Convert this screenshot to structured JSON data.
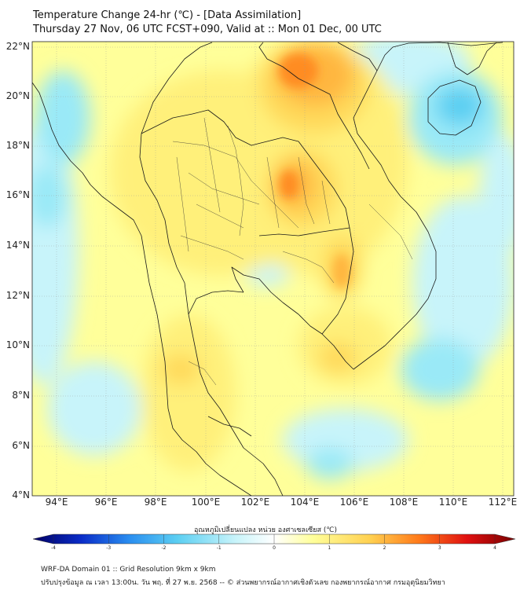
{
  "header": {
    "title_line1": "Temperature Change 24-hr (℃) - [Data Assimilation]",
    "title_line2": "Thursday 27 Nov, 06 UTC FCST+090, Valid at :: Mon 01 Dec, 00 UTC"
  },
  "map": {
    "lat_labels": [
      "22°N",
      "20°N",
      "18°N",
      "16°N",
      "14°N",
      "12°N",
      "10°N",
      "8°N",
      "6°N",
      "4°N"
    ],
    "lon_labels": [
      "94°E",
      "96°E",
      "98°E",
      "100°E",
      "102°E",
      "104°E",
      "106°E",
      "108°E",
      "110°E",
      "112°E"
    ],
    "warm_colors": [
      "#ffff9a",
      "#fff07a",
      "#ffd95a",
      "#ffb640",
      "#ff8c22",
      "#ff4a10"
    ],
    "cool_colors": [
      "#c8f4fa",
      "#9ae9f7",
      "#5ccff2",
      "#2aa8e8"
    ]
  },
  "colorbar": {
    "label": "อุณหภูมิเปลี่ยนแปลง หน่วย องศาเซลเซียส (℃)",
    "ticks": [
      "-4",
      "-3",
      "-2",
      "-1",
      "0",
      "1",
      "2",
      "3",
      "4"
    ],
    "stops": [
      "#000064",
      "#0a2cc8",
      "#2a8ef0",
      "#5ccff2",
      "#c8f4fa",
      "#ffffff",
      "#ffff9a",
      "#ffd050",
      "#ff7a1a",
      "#e01010",
      "#780000"
    ]
  },
  "footer": {
    "line1": "WRF-DA Domain 01 :: Grid Resolution 9km x 9km",
    "line2": "ปรับปรุงข้อมูล ณ เวลา 13:00น. วัน พฤ. ที่ 27 พ.ย. 2568 -- © ส่วนพยากรณ์อากาศเชิงตัวเลข กองพยากรณ์อากาศ กรมอุตุนิยมวิทยา"
  }
}
